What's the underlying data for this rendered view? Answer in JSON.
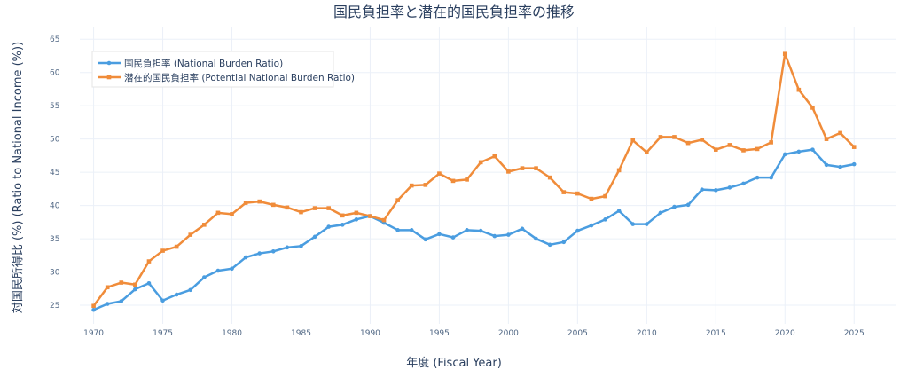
{
  "chart_data": {
    "type": "line",
    "title": "国民負担率と潜在的国民負担率の推移",
    "xlabel": "年度 (Fiscal Year)",
    "ylabel": "対国民所得比 (%) (Ratio to National Income (%))",
    "xlim": [
      1969,
      2028
    ],
    "ylim": [
      22.2,
      66.9
    ],
    "xticks": [
      1970,
      1975,
      1980,
      1985,
      1990,
      1995,
      2000,
      2005,
      2010,
      2015,
      2020,
      2025
    ],
    "yticks": [
      25,
      30,
      35,
      40,
      45,
      50,
      55,
      60,
      65
    ],
    "grid": true,
    "legend_position": "top-left",
    "x": [
      1970,
      1971,
      1972,
      1973,
      1974,
      1975,
      1976,
      1977,
      1978,
      1979,
      1980,
      1981,
      1982,
      1983,
      1984,
      1985,
      1986,
      1987,
      1988,
      1989,
      1990,
      1991,
      1992,
      1993,
      1994,
      1995,
      1996,
      1997,
      1998,
      1999,
      2000,
      2001,
      2002,
      2003,
      2004,
      2005,
      2006,
      2007,
      2008,
      2009,
      2010,
      2011,
      2012,
      2013,
      2014,
      2015,
      2016,
      2017,
      2018,
      2019,
      2020,
      2021,
      2022,
      2023,
      2024,
      2025
    ],
    "series": [
      {
        "name": "国民負担率 (National Burden Ratio)",
        "color": "#4a9de0",
        "values": [
          24.3,
          25.2,
          25.6,
          27.4,
          28.3,
          25.7,
          26.6,
          27.3,
          29.2,
          30.2,
          30.5,
          32.2,
          32.8,
          33.1,
          33.7,
          33.9,
          35.3,
          36.8,
          37.1,
          37.9,
          38.4,
          37.4,
          36.3,
          36.3,
          34.9,
          35.7,
          35.2,
          36.3,
          36.2,
          35.4,
          35.6,
          36.5,
          35.0,
          34.1,
          34.5,
          36.2,
          37.0,
          37.9,
          39.2,
          37.2,
          37.2,
          38.9,
          39.8,
          40.1,
          42.4,
          42.3,
          42.7,
          43.3,
          44.2,
          44.2,
          47.7,
          48.1,
          48.4,
          46.1,
          45.8,
          46.2
        ]
      },
      {
        "name": "潜在的国民負担率 (Potential National Burden Ratio)",
        "color": "#f08c3a",
        "values": [
          24.9,
          27.7,
          28.4,
          28.1,
          31.6,
          33.2,
          33.8,
          35.6,
          37.1,
          38.9,
          38.7,
          40.4,
          40.6,
          40.1,
          39.7,
          39.0,
          39.6,
          39.6,
          38.5,
          38.9,
          38.4,
          37.8,
          40.8,
          43.0,
          43.1,
          44.8,
          43.7,
          43.9,
          46.5,
          47.4,
          45.1,
          45.6,
          45.6,
          44.2,
          42.0,
          41.8,
          41.0,
          41.4,
          45.3,
          49.8,
          48.0,
          50.3,
          50.3,
          49.4,
          49.9,
          48.4,
          49.1,
          48.3,
          48.5,
          49.5,
          62.8,
          57.4,
          54.7,
          50.0,
          50.9,
          48.8
        ]
      }
    ]
  }
}
